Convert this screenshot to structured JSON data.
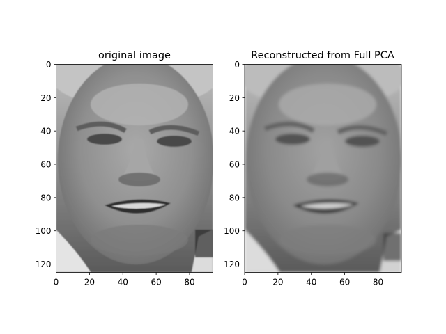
{
  "chart_data": [
    {
      "type": "image",
      "title": "original image",
      "xlabel": "",
      "ylabel": "",
      "xlim": [
        0,
        94
      ],
      "ylim": [
        125,
        0
      ],
      "xticks": [
        0,
        20,
        40,
        60,
        80
      ],
      "yticks": [
        0,
        20,
        40,
        60,
        80,
        100,
        120
      ],
      "xtick_labels": [
        "0",
        "20",
        "40",
        "60",
        "80"
      ],
      "ytick_labels": [
        "0",
        "20",
        "40",
        "60",
        "80",
        "100",
        "120"
      ],
      "image_description": "grayscale face photo (94x125 pixels)",
      "colormap": "gray"
    },
    {
      "type": "image",
      "title": "Reconstructed from Full PCA",
      "xlabel": "",
      "ylabel": "",
      "xlim": [
        0,
        94
      ],
      "ylim": [
        125,
        0
      ],
      "xticks": [
        0,
        20,
        40,
        60,
        80
      ],
      "yticks": [
        0,
        20,
        40,
        60,
        80,
        100,
        120
      ],
      "xtick_labels": [
        "0",
        "20",
        "40",
        "60",
        "80"
      ],
      "ytick_labels": [
        "0",
        "20",
        "40",
        "60",
        "80",
        "100",
        "120"
      ],
      "image_description": "grayscale face reconstruction (94x125 pixels), smoother than original",
      "colormap": "gray"
    }
  ]
}
